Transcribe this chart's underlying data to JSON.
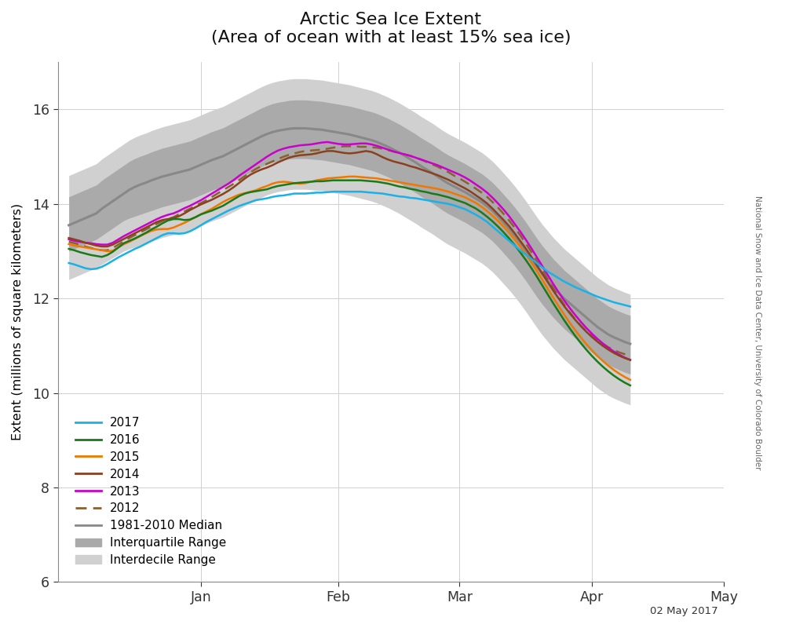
{
  "title": "Arctic Sea Ice Extent\n(Area of ocean with at least 15% sea ice)",
  "ylabel": "Extent (millions of square kilometers)",
  "date_label": "02 May 2017",
  "watermark": "National Snow and Ice Data Center, University of Colorado Boulder",
  "ylim": [
    6,
    17
  ],
  "yticks": [
    6,
    8,
    10,
    12,
    14,
    16
  ],
  "background_color": "#ffffff",
  "colors": {
    "2017": "#1ab0e8",
    "2016": "#1a7a1a",
    "2015": "#f07800",
    "2014": "#8b4020",
    "2013": "#cc00cc",
    "2012_color": "#8b6030",
    "median": "#888888",
    "iq": "#aaaaaa",
    "id": "#d0d0d0"
  },
  "median": [
    13.55,
    13.6,
    13.65,
    13.7,
    13.75,
    13.8,
    13.9,
    13.98,
    14.06,
    14.14,
    14.22,
    14.3,
    14.36,
    14.41,
    14.45,
    14.5,
    14.54,
    14.58,
    14.61,
    14.64,
    14.67,
    14.7,
    14.73,
    14.78,
    14.83,
    14.88,
    14.93,
    14.97,
    15.01,
    15.07,
    15.13,
    15.19,
    15.25,
    15.31,
    15.37,
    15.43,
    15.48,
    15.52,
    15.55,
    15.57,
    15.59,
    15.6,
    15.6,
    15.6,
    15.59,
    15.58,
    15.57,
    15.55,
    15.53,
    15.51,
    15.49,
    15.47,
    15.44,
    15.41,
    15.38,
    15.35,
    15.31,
    15.26,
    15.21,
    15.15,
    15.09,
    15.02,
    14.95,
    14.88,
    14.8,
    14.73,
    14.66,
    14.58,
    14.5,
    14.43,
    14.37,
    14.31,
    14.25,
    14.18,
    14.11,
    14.04,
    13.95,
    13.85,
    13.73,
    13.6,
    13.47,
    13.33,
    13.18,
    13.02,
    12.85,
    12.68,
    12.52,
    12.38,
    12.24,
    12.12,
    12.0,
    11.9,
    11.8,
    11.7,
    11.6,
    11.5,
    11.4,
    11.32,
    11.24,
    11.18,
    11.13,
    11.08,
    11.04,
    11.01,
    10.99,
    10.97,
    10.96,
    10.95,
    10.94,
    10.93,
    10.92,
    10.91,
    10.9,
    10.89,
    10.88,
    10.87,
    10.86,
    10.85,
    10.84,
    10.83,
    10.82
  ],
  "iq_upper": [
    14.15,
    14.2,
    14.25,
    14.3,
    14.35,
    14.4,
    14.5,
    14.58,
    14.66,
    14.74,
    14.82,
    14.9,
    14.96,
    15.01,
    15.05,
    15.1,
    15.14,
    15.18,
    15.21,
    15.24,
    15.27,
    15.3,
    15.33,
    15.38,
    15.43,
    15.48,
    15.53,
    15.57,
    15.61,
    15.67,
    15.73,
    15.79,
    15.85,
    15.91,
    15.97,
    16.03,
    16.08,
    16.12,
    16.15,
    16.17,
    16.19,
    16.2,
    16.2,
    16.2,
    16.19,
    16.18,
    16.17,
    16.15,
    16.13,
    16.11,
    16.09,
    16.07,
    16.04,
    16.01,
    15.98,
    15.95,
    15.91,
    15.86,
    15.81,
    15.75,
    15.69,
    15.62,
    15.55,
    15.48,
    15.4,
    15.33,
    15.26,
    15.18,
    15.1,
    15.03,
    14.97,
    14.91,
    14.85,
    14.78,
    14.71,
    14.64,
    14.55,
    14.45,
    14.33,
    14.2,
    14.07,
    13.93,
    13.78,
    13.62,
    13.45,
    13.28,
    13.12,
    12.98,
    12.84,
    12.72,
    12.6,
    12.5,
    12.4,
    12.3,
    12.2,
    12.1,
    12.0,
    11.92,
    11.84,
    11.78,
    11.73,
    11.68,
    11.64,
    11.61,
    11.59,
    11.57,
    11.56,
    11.55,
    11.54,
    11.53,
    11.52,
    11.51,
    11.5,
    11.49,
    11.48,
    11.47,
    11.46,
    11.45,
    11.44,
    11.43,
    11.42
  ],
  "iq_lower": [
    13.0,
    13.05,
    13.1,
    13.15,
    13.2,
    13.25,
    13.33,
    13.41,
    13.49,
    13.57,
    13.65,
    13.7,
    13.74,
    13.78,
    13.82,
    13.86,
    13.9,
    13.94,
    13.97,
    14.0,
    14.03,
    14.06,
    14.09,
    14.14,
    14.19,
    14.24,
    14.29,
    14.33,
    14.37,
    14.43,
    14.49,
    14.55,
    14.61,
    14.67,
    14.73,
    14.79,
    14.84,
    14.88,
    14.91,
    14.93,
    14.95,
    14.96,
    14.96,
    14.96,
    14.95,
    14.94,
    14.93,
    14.91,
    14.89,
    14.87,
    14.85,
    14.83,
    14.8,
    14.77,
    14.74,
    14.71,
    14.67,
    14.62,
    14.57,
    14.51,
    14.45,
    14.38,
    14.31,
    14.24,
    14.16,
    14.09,
    14.02,
    13.94,
    13.86,
    13.79,
    13.73,
    13.67,
    13.61,
    13.54,
    13.47,
    13.4,
    13.31,
    13.21,
    13.09,
    12.96,
    12.83,
    12.69,
    12.54,
    12.38,
    12.21,
    12.04,
    11.88,
    11.74,
    11.6,
    11.48,
    11.36,
    11.26,
    11.16,
    11.06,
    10.96,
    10.86,
    10.76,
    10.68,
    10.6,
    10.54,
    10.49,
    10.44,
    10.4,
    10.37,
    10.35,
    10.33,
    10.32,
    10.31,
    10.3,
    10.29,
    10.28,
    10.27,
    10.26,
    10.25,
    10.24,
    10.23,
    10.22
  ],
  "id_upper": [
    14.6,
    14.65,
    14.7,
    14.75,
    14.8,
    14.85,
    14.95,
    15.03,
    15.11,
    15.19,
    15.27,
    15.35,
    15.41,
    15.46,
    15.5,
    15.55,
    15.59,
    15.63,
    15.66,
    15.69,
    15.72,
    15.75,
    15.78,
    15.83,
    15.88,
    15.93,
    15.98,
    16.02,
    16.06,
    16.12,
    16.18,
    16.24,
    16.3,
    16.36,
    16.42,
    16.48,
    16.53,
    16.57,
    16.6,
    16.62,
    16.64,
    16.65,
    16.65,
    16.65,
    16.64,
    16.63,
    16.62,
    16.6,
    16.58,
    16.56,
    16.54,
    16.52,
    16.49,
    16.46,
    16.43,
    16.4,
    16.36,
    16.31,
    16.26,
    16.2,
    16.14,
    16.07,
    16.0,
    15.93,
    15.85,
    15.78,
    15.71,
    15.63,
    15.55,
    15.48,
    15.42,
    15.36,
    15.3,
    15.23,
    15.16,
    15.09,
    15.0,
    14.9,
    14.78,
    14.65,
    14.52,
    14.38,
    14.23,
    14.07,
    13.9,
    13.73,
    13.57,
    13.43,
    13.29,
    13.17,
    13.05,
    12.95,
    12.85,
    12.75,
    12.65,
    12.55,
    12.45,
    12.37,
    12.29,
    12.23,
    12.18,
    12.13,
    12.09,
    12.06,
    12.04,
    12.02,
    12.01,
    12.0,
    11.99,
    11.98,
    11.97,
    11.96,
    11.95,
    11.94,
    11.93,
    11.92,
    11.91,
    11.9,
    11.89,
    11.88,
    11.87
  ],
  "id_lower": [
    12.4,
    12.45,
    12.5,
    12.55,
    12.6,
    12.65,
    12.72,
    12.79,
    12.86,
    12.93,
    13.0,
    13.05,
    13.09,
    13.13,
    13.17,
    13.21,
    13.25,
    13.29,
    13.32,
    13.35,
    13.38,
    13.41,
    13.44,
    13.49,
    13.54,
    13.59,
    13.64,
    13.68,
    13.72,
    13.78,
    13.84,
    13.9,
    13.96,
    14.02,
    14.08,
    14.14,
    14.19,
    14.23,
    14.26,
    14.28,
    14.3,
    14.31,
    14.31,
    14.31,
    14.3,
    14.29,
    14.28,
    14.26,
    14.24,
    14.22,
    14.2,
    14.18,
    14.15,
    14.12,
    14.09,
    14.06,
    14.02,
    13.97,
    13.92,
    13.86,
    13.8,
    13.73,
    13.66,
    13.59,
    13.51,
    13.44,
    13.37,
    13.29,
    13.21,
    13.14,
    13.08,
    13.02,
    12.96,
    12.89,
    12.82,
    12.75,
    12.66,
    12.56,
    12.44,
    12.31,
    12.18,
    12.04,
    11.89,
    11.73,
    11.56,
    11.39,
    11.23,
    11.09,
    10.95,
    10.83,
    10.71,
    10.61,
    10.51,
    10.41,
    10.31,
    10.21,
    10.11,
    10.03,
    9.95,
    9.89,
    9.84,
    9.79,
    9.75,
    9.72,
    9.7,
    9.68,
    9.67,
    9.66,
    9.65,
    9.64,
    9.63,
    9.62,
    9.61,
    9.6,
    9.59,
    9.58,
    9.57,
    9.56,
    9.55,
    9.54,
    9.53
  ],
  "y2017": [
    12.75,
    12.72,
    12.68,
    12.64,
    12.62,
    12.63,
    12.67,
    12.73,
    12.8,
    12.87,
    12.93,
    12.99,
    13.05,
    13.1,
    13.16,
    13.22,
    13.28,
    13.34,
    13.38,
    13.38,
    13.37,
    13.38,
    13.42,
    13.48,
    13.55,
    13.62,
    13.68,
    13.74,
    13.8,
    13.86,
    13.91,
    13.96,
    14.0,
    14.04,
    14.08,
    14.1,
    14.12,
    14.15,
    14.17,
    14.18,
    14.2,
    14.22,
    14.22,
    14.22,
    14.23,
    14.24,
    14.24,
    14.25,
    14.26,
    14.26,
    14.26,
    14.26,
    14.26,
    14.26,
    14.25,
    14.24,
    14.23,
    14.22,
    14.2,
    14.18,
    14.16,
    14.15,
    14.13,
    14.12,
    14.1,
    14.08,
    14.06,
    14.04,
    14.02,
    14.0,
    13.97,
    13.93,
    13.89,
    13.83,
    13.77,
    13.7,
    13.62,
    13.52,
    13.42,
    13.32,
    13.22,
    13.12,
    13.02,
    12.93,
    12.84,
    12.75,
    12.66,
    12.57,
    12.5,
    12.43,
    12.36,
    12.3,
    12.24,
    12.19,
    12.14,
    12.09,
    12.04,
    12.0,
    11.96,
    11.92,
    11.89,
    11.86,
    11.83,
    11.8,
    11.77,
    11.74,
    11.71,
    11.68,
    11.65,
    11.62,
    11.59,
    11.57,
    11.55,
    11.53,
    11.51
  ],
  "y2016": [
    13.05,
    13.02,
    12.98,
    12.95,
    12.92,
    12.9,
    12.88,
    12.92,
    12.99,
    13.08,
    13.17,
    13.22,
    13.27,
    13.33,
    13.39,
    13.46,
    13.52,
    13.59,
    13.65,
    13.68,
    13.68,
    13.66,
    13.67,
    13.72,
    13.78,
    13.82,
    13.86,
    13.91,
    13.96,
    14.03,
    14.1,
    14.17,
    14.22,
    14.25,
    14.27,
    14.29,
    14.31,
    14.35,
    14.38,
    14.4,
    14.42,
    14.44,
    14.45,
    14.46,
    14.47,
    14.48,
    14.48,
    14.49,
    14.5,
    14.5,
    14.5,
    14.5,
    14.5,
    14.5,
    14.49,
    14.48,
    14.47,
    14.45,
    14.43,
    14.4,
    14.37,
    14.35,
    14.32,
    14.3,
    14.27,
    14.25,
    14.22,
    14.2,
    14.17,
    14.14,
    14.1,
    14.06,
    14.02,
    13.96,
    13.9,
    13.82,
    13.73,
    13.63,
    13.52,
    13.4,
    13.27,
    13.13,
    12.98,
    12.82,
    12.65,
    12.47,
    12.28,
    12.09,
    11.9,
    11.72,
    11.54,
    11.37,
    11.21,
    11.06,
    10.92,
    10.79,
    10.67,
    10.56,
    10.46,
    10.37,
    10.29,
    10.22,
    10.16,
    10.11,
    10.07,
    10.04,
    10.01,
    9.99,
    9.97,
    9.96,
    9.95,
    9.94,
    9.93
  ],
  "y2015": [
    13.15,
    13.12,
    13.1,
    13.08,
    13.06,
    13.04,
    13.02,
    13.0,
    13.01,
    13.08,
    13.15,
    13.2,
    13.26,
    13.32,
    13.38,
    13.43,
    13.46,
    13.47,
    13.47,
    13.5,
    13.55,
    13.6,
    13.66,
    13.72,
    13.78,
    13.84,
    13.9,
    13.97,
    14.04,
    14.1,
    14.15,
    14.2,
    14.23,
    14.26,
    14.29,
    14.34,
    14.38,
    14.43,
    14.46,
    14.47,
    14.46,
    14.44,
    14.43,
    14.44,
    14.47,
    14.5,
    14.52,
    14.54,
    14.55,
    14.56,
    14.57,
    14.58,
    14.58,
    14.57,
    14.56,
    14.55,
    14.54,
    14.52,
    14.5,
    14.48,
    14.46,
    14.44,
    14.42,
    14.4,
    14.38,
    14.36,
    14.34,
    14.32,
    14.29,
    14.26,
    14.22,
    14.18,
    14.14,
    14.08,
    14.02,
    13.94,
    13.85,
    13.75,
    13.64,
    13.52,
    13.39,
    13.25,
    13.1,
    12.94,
    12.77,
    12.59,
    12.4,
    12.21,
    12.02,
    11.84,
    11.66,
    11.49,
    11.33,
    11.18,
    11.04,
    10.91,
    10.79,
    10.68,
    10.58,
    10.49,
    10.41,
    10.34,
    10.28
  ],
  "y2014": [
    13.28,
    13.25,
    13.22,
    13.18,
    13.15,
    13.12,
    13.1,
    13.1,
    13.14,
    13.2,
    13.26,
    13.32,
    13.38,
    13.44,
    13.5,
    13.56,
    13.62,
    13.66,
    13.68,
    13.7,
    13.74,
    13.8,
    13.87,
    13.93,
    13.99,
    14.04,
    14.09,
    14.15,
    14.21,
    14.28,
    14.36,
    14.45,
    14.54,
    14.62,
    14.68,
    14.73,
    14.77,
    14.82,
    14.88,
    14.93,
    14.98,
    15.01,
    15.03,
    15.04,
    15.05,
    15.07,
    15.1,
    15.12,
    15.12,
    15.1,
    15.08,
    15.07,
    15.08,
    15.1,
    15.12,
    15.1,
    15.05,
    14.99,
    14.94,
    14.9,
    14.87,
    14.84,
    14.8,
    14.77,
    14.73,
    14.69,
    14.65,
    14.61,
    14.56,
    14.51,
    14.45,
    14.39,
    14.33,
    14.26,
    14.18,
    14.1,
    14.01,
    13.9,
    13.78,
    13.66,
    13.53,
    13.38,
    13.22,
    13.06,
    12.89,
    12.71,
    12.53,
    12.35,
    12.17,
    12.0,
    11.84,
    11.69,
    11.55,
    11.42,
    11.3,
    11.19,
    11.09,
    11.0,
    10.92,
    10.85,
    10.79,
    10.74,
    10.7
  ],
  "y2013": [
    13.25,
    13.22,
    13.2,
    13.18,
    13.17,
    13.15,
    13.14,
    13.14,
    13.18,
    13.25,
    13.32,
    13.38,
    13.44,
    13.5,
    13.56,
    13.62,
    13.68,
    13.73,
    13.77,
    13.8,
    13.85,
    13.91,
    13.96,
    14.02,
    14.08,
    14.15,
    14.22,
    14.29,
    14.36,
    14.43,
    14.51,
    14.6,
    14.68,
    14.76,
    14.84,
    14.92,
    15.0,
    15.07,
    15.13,
    15.17,
    15.2,
    15.22,
    15.24,
    15.25,
    15.26,
    15.28,
    15.3,
    15.31,
    15.29,
    15.27,
    15.26,
    15.26,
    15.27,
    15.28,
    15.28,
    15.26,
    15.23,
    15.19,
    15.15,
    15.11,
    15.08,
    15.05,
    15.02,
    14.98,
    14.94,
    14.9,
    14.86,
    14.82,
    14.77,
    14.72,
    14.67,
    14.62,
    14.56,
    14.49,
    14.41,
    14.33,
    14.24,
    14.13,
    14.01,
    13.88,
    13.74,
    13.58,
    13.42,
    13.25,
    13.07,
    12.88,
    12.69,
    12.5,
    12.31,
    12.13,
    11.96,
    11.8,
    11.65,
    11.51,
    11.38,
    11.26,
    11.15,
    11.05,
    10.96,
    10.88,
    10.81,
    10.75,
    10.7
  ],
  "y2012": [
    13.2,
    13.17,
    13.14,
    13.1,
    13.07,
    13.04,
    13.02,
    13.02,
    13.07,
    13.14,
    13.21,
    13.28,
    13.34,
    13.4,
    13.46,
    13.52,
    13.58,
    13.64,
    13.68,
    13.72,
    13.78,
    13.84,
    13.9,
    13.96,
    14.02,
    14.08,
    14.15,
    14.22,
    14.29,
    14.36,
    14.43,
    14.51,
    14.59,
    14.67,
    14.74,
    14.8,
    14.85,
    14.9,
    14.95,
    15.0,
    15.04,
    15.07,
    15.1,
    15.12,
    15.13,
    15.14,
    15.15,
    15.17,
    15.19,
    15.21,
    15.22,
    15.22,
    15.22,
    15.21,
    15.21,
    15.2,
    15.19,
    15.17,
    15.14,
    15.11,
    15.08,
    15.05,
    15.02,
    14.98,
    14.94,
    14.89,
    14.84,
    14.79,
    14.73,
    14.67,
    14.6,
    14.54,
    14.47,
    14.4,
    14.32,
    14.24,
    14.15,
    14.04,
    13.92,
    13.79,
    13.65,
    13.5,
    13.34,
    13.17,
    12.99,
    12.8,
    12.61,
    12.41,
    12.22,
    12.04,
    11.87,
    11.71,
    11.56,
    11.43,
    11.31,
    11.21,
    11.12,
    11.04,
    10.97,
    10.91,
    10.86,
    10.82,
    10.78
  ]
}
